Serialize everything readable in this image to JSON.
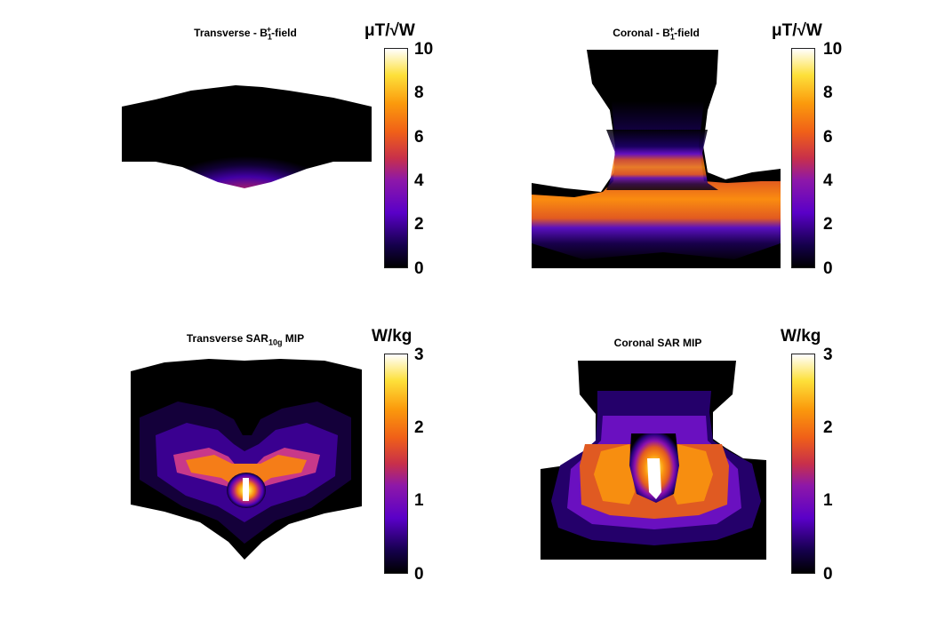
{
  "colormap": {
    "name": "hot-purple",
    "stops": [
      "#000000",
      "#1a0066",
      "#6a00d6",
      "#a0208a",
      "#d94b2b",
      "#f57f0a",
      "#fdb915",
      "#ffee55",
      "#ffffff"
    ]
  },
  "panels": [
    {
      "id": "transverse-b1",
      "title_main": "Transverse - B",
      "title_sub": "1",
      "title_sup": "+",
      "title_tail": "-field",
      "unit": "μT/√W",
      "ticks": [
        "10",
        "8",
        "6",
        "4",
        "2",
        "0"
      ]
    },
    {
      "id": "coronal-b1",
      "title_main": "Coronal - B",
      "title_sub": "1",
      "title_sup": "+",
      "title_tail": "-field",
      "unit": "μT/√W",
      "ticks": [
        "10",
        "8",
        "6",
        "4",
        "2",
        "0"
      ]
    },
    {
      "id": "transverse-sar",
      "title_main": "Transverse SAR",
      "title_sub": "10g",
      "title_sup": "",
      "title_tail": " MIP",
      "unit": "W/kg",
      "ticks": [
        "3",
        "2",
        "1",
        "0"
      ]
    },
    {
      "id": "coronal-sar",
      "title_main": "Coronal SAR MIP",
      "title_sub": "",
      "title_sup": "",
      "title_tail": "",
      "unit": "W/kg",
      "ticks": [
        "3",
        "2",
        "1",
        "0"
      ]
    }
  ]
}
